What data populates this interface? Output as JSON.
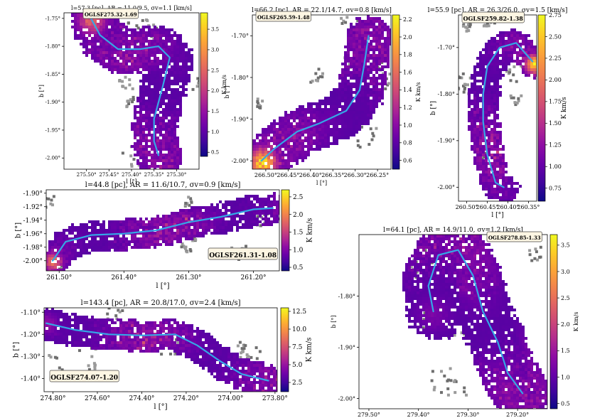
{
  "colorbar_unit": "K km/s",
  "chart_data": [
    {
      "type": "heatmap",
      "id": "p1",
      "title": "l=57.3 [pc], AR = 11.0/9.5, σv=1.1 [km/s]",
      "label": "OGLSF275.32-1.69",
      "xlabel": "l [°]",
      "ylabel": "b [°]",
      "cbar_label": "K km/s",
      "xlim": [
        275.55,
        275.25
      ],
      "ylim": [
        -2.02,
        -1.74
      ],
      "xticks": [
        {
          "v": 275.5,
          "t": "275.50°"
        },
        {
          "v": 275.45,
          "t": "275.45°"
        },
        {
          "v": 275.4,
          "t": "275.40°"
        },
        {
          "v": 275.35,
          "t": "275.35°"
        },
        {
          "v": 275.3,
          "t": "275.30°"
        }
      ],
      "yticks": [
        {
          "v": -1.75,
          "t": "-1.75°"
        },
        {
          "v": -1.8,
          "t": "-1.80°"
        },
        {
          "v": -1.85,
          "t": "-1.85°"
        },
        {
          "v": -1.9,
          "t": "-1.90°"
        },
        {
          "v": -1.95,
          "t": "-1.95°"
        },
        {
          "v": -2.0,
          "t": "-2.00°"
        }
      ],
      "clim": [
        0.4,
        3.9
      ],
      "cticks": [
        {
          "v": 0.5,
          "t": "0.5"
        },
        {
          "v": 1.0,
          "t": "1.0"
        },
        {
          "v": 1.5,
          "t": "1.5"
        },
        {
          "v": 2.0,
          "t": "2.0"
        },
        {
          "v": 2.5,
          "t": "2.5"
        },
        {
          "v": 3.0,
          "t": "3.0"
        },
        {
          "v": 3.5,
          "t": "3.5"
        }
      ],
      "spine": [
        [
          275.49,
          -1.75
        ],
        [
          275.47,
          -1.78
        ],
        [
          275.43,
          -1.805
        ],
        [
          275.38,
          -1.805
        ],
        [
          275.34,
          -1.8
        ],
        [
          275.315,
          -1.82
        ],
        [
          275.33,
          -1.87
        ],
        [
          275.35,
          -1.93
        ],
        [
          275.35,
          -1.97
        ],
        [
          275.34,
          -1.995
        ]
      ]
    },
    {
      "type": "heatmap",
      "id": "p2",
      "title": "l=66.2 [pc], AR = 22.1/14.7, σv=0.8 [km/s]",
      "label": "OGLSF265.59-1.48",
      "xlabel": "l [°]",
      "ylabel": "b [°]",
      "cbar_label": "K km/s",
      "xlim": [
        266.53,
        266.22
      ],
      "ylim": [
        -2.02,
        -1.65
      ],
      "xticks": [
        {
          "v": 266.5,
          "t": "266.50°"
        },
        {
          "v": 266.45,
          "t": "266.45°"
        },
        {
          "v": 266.4,
          "t": "266.40°"
        },
        {
          "v": 266.35,
          "t": "266.35°"
        },
        {
          "v": 266.3,
          "t": "266.30°"
        },
        {
          "v": 266.25,
          "t": "266.25°"
        }
      ],
      "yticks": [
        {
          "v": -1.7,
          "t": "-1.70°"
        },
        {
          "v": -1.8,
          "t": "-1.80°"
        },
        {
          "v": -1.9,
          "t": "-1.90°"
        },
        {
          "v": -2.0,
          "t": "-2.00°"
        }
      ],
      "clim": [
        0.5,
        2.25
      ],
      "cticks": [
        {
          "v": 0.6,
          "t": "0.6"
        },
        {
          "v": 0.8,
          "t": "0.8"
        },
        {
          "v": 1.0,
          "t": "1.0"
        },
        {
          "v": 1.2,
          "t": "1.2"
        },
        {
          "v": 1.4,
          "t": "1.4"
        },
        {
          "v": 1.6,
          "t": "1.6"
        },
        {
          "v": 1.8,
          "t": "1.8"
        },
        {
          "v": 2.0,
          "t": "2.0"
        },
        {
          "v": 2.2,
          "t": "2.2"
        }
      ],
      "spine": [
        [
          266.51,
          -2.0
        ],
        [
          266.48,
          -1.97
        ],
        [
          266.43,
          -1.93
        ],
        [
          266.38,
          -1.91
        ],
        [
          266.32,
          -1.88
        ],
        [
          266.29,
          -1.83
        ],
        [
          266.28,
          -1.77
        ],
        [
          266.27,
          -1.7
        ]
      ]
    },
    {
      "type": "heatmap",
      "id": "p3",
      "title": "l=55.9 [pc], AR = 26.3/26.0, σv=1.5 [km/s]",
      "label": "OGLSF259.82-1.38",
      "xlabel": "l [°]",
      "ylabel": "b [°]",
      "cbar_label": "K km/s",
      "xlim": [
        260.52,
        260.33
      ],
      "ylim": [
        -2.03,
        -1.63
      ],
      "xticks": [
        {
          "v": 260.5,
          "t": "260.50°"
        },
        {
          "v": 260.45,
          "t": "260.45°"
        },
        {
          "v": 260.4,
          "t": "260.40°"
        },
        {
          "v": 260.35,
          "t": "260.35°"
        }
      ],
      "yticks": [
        {
          "v": -1.7,
          "t": "-1.70°"
        },
        {
          "v": -1.8,
          "t": "-1.80°"
        },
        {
          "v": -1.9,
          "t": "-1.90°"
        },
        {
          "v": -2.0,
          "t": "-2.00°"
        }
      ],
      "clim": [
        0.6,
        2.75
      ],
      "cticks": [
        {
          "v": 0.75,
          "t": "0.75"
        },
        {
          "v": 1.0,
          "t": "1.00"
        },
        {
          "v": 1.25,
          "t": "1.25"
        },
        {
          "v": 1.5,
          "t": "1.50"
        },
        {
          "v": 1.75,
          "t": "1.75"
        },
        {
          "v": 2.0,
          "t": "2.00"
        },
        {
          "v": 2.25,
          "t": "2.25"
        },
        {
          "v": 2.5,
          "t": "2.50"
        },
        {
          "v": 2.75,
          "t": "2.75"
        }
      ],
      "spine": [
        [
          260.34,
          -1.73
        ],
        [
          260.38,
          -1.69
        ],
        [
          260.42,
          -1.7
        ],
        [
          260.45,
          -1.74
        ],
        [
          260.46,
          -1.8
        ],
        [
          260.46,
          -1.86
        ],
        [
          260.45,
          -1.93
        ],
        [
          260.43,
          -1.99
        ],
        [
          260.41,
          -2.0
        ]
      ]
    },
    {
      "type": "heatmap",
      "id": "p4",
      "title": "l=44.8 [pc], AR = 11.6/10.7, σv=0.9 [km/s]",
      "label": "OGLSF261.31-1.08",
      "xlabel": "l [°]",
      "ylabel": "b [°]",
      "cbar_label": "K km/s",
      "xlim": [
        261.52,
        261.16
      ],
      "ylim": [
        -2.015,
        -1.895
      ],
      "xticks": [
        {
          "v": 261.5,
          "t": "261.50°"
        },
        {
          "v": 261.4,
          "t": "261.40°"
        },
        {
          "v": 261.3,
          "t": "261.30°"
        },
        {
          "v": 261.2,
          "t": "261.20°"
        }
      ],
      "yticks": [
        {
          "v": -1.9,
          "t": "-1.90°"
        },
        {
          "v": -1.92,
          "t": "-1.92°"
        },
        {
          "v": -1.94,
          "t": "-1.94°"
        },
        {
          "v": -1.96,
          "t": "-1.96°"
        },
        {
          "v": -1.98,
          "t": "-1.98°"
        },
        {
          "v": -2.0,
          "t": "-2.00°"
        }
      ],
      "clim": [
        0.4,
        2.7
      ],
      "cticks": [
        {
          "v": 0.5,
          "t": "0.5"
        },
        {
          "v": 1.0,
          "t": "1.0"
        },
        {
          "v": 1.5,
          "t": "1.5"
        },
        {
          "v": 2.0,
          "t": "2.0"
        },
        {
          "v": 2.5,
          "t": "2.5"
        }
      ],
      "spine": [
        [
          261.51,
          -2.0
        ],
        [
          261.49,
          -1.972
        ],
        [
          261.45,
          -1.962
        ],
        [
          261.4,
          -1.96
        ],
        [
          261.35,
          -1.955
        ],
        [
          261.3,
          -1.943
        ],
        [
          261.25,
          -1.935
        ],
        [
          261.2,
          -1.924
        ],
        [
          261.17,
          -1.922
        ]
      ]
    },
    {
      "type": "heatmap",
      "id": "p5",
      "title": "l=143.4 [pc], AR = 20.8/17.0, σv=2.4 [km/s]",
      "label": "OGLSF274.07-1.20",
      "xlabel": "l [°]",
      "ylabel": "b [°]",
      "cbar_label": "K km/s",
      "xlim": [
        274.84,
        273.79
      ],
      "ylim": [
        -1.46,
        -1.08
      ],
      "xticks": [
        {
          "v": 274.8,
          "t": "274.80°"
        },
        {
          "v": 274.6,
          "t": "274.60°"
        },
        {
          "v": 274.4,
          "t": "274.40°"
        },
        {
          "v": 274.2,
          "t": "274.20°"
        },
        {
          "v": 274.0,
          "t": "274.00°"
        },
        {
          "v": 273.8,
          "t": "273.80°"
        }
      ],
      "yticks": [
        {
          "v": -1.1,
          "t": "-1.10°"
        },
        {
          "v": -1.2,
          "t": "-1.20°"
        },
        {
          "v": -1.3,
          "t": "-1.30°"
        },
        {
          "v": -1.4,
          "t": "-1.40°"
        }
      ],
      "clim": [
        1.2,
        13.0
      ],
      "cticks": [
        {
          "v": 2.5,
          "t": "2.5"
        },
        {
          "v": 5.0,
          "t": "5.0"
        },
        {
          "v": 7.5,
          "t": "7.5"
        },
        {
          "v": 10.0,
          "t": "10.0"
        },
        {
          "v": 12.5,
          "t": "12.5"
        }
      ],
      "spine": [
        [
          274.83,
          -1.15
        ],
        [
          274.7,
          -1.18
        ],
        [
          274.55,
          -1.2
        ],
        [
          274.4,
          -1.205
        ],
        [
          274.25,
          -1.2
        ],
        [
          274.15,
          -1.25
        ],
        [
          274.05,
          -1.32
        ],
        [
          273.95,
          -1.38
        ],
        [
          273.83,
          -1.41
        ]
      ]
    },
    {
      "type": "heatmap",
      "id": "p6",
      "title": "l=64.1 [pc], AR = 14.9/11.0, σv=1.2 [km/s]",
      "label": "OGLSF278.85-1.33",
      "xlabel": "l [°]",
      "ylabel": "b [°]",
      "cbar_label": "K km/s",
      "xlim": [
        279.52,
        279.14
      ],
      "ylim": [
        -2.02,
        -1.68
      ],
      "xticks": [
        {
          "v": 279.5,
          "t": "279.50°"
        },
        {
          "v": 279.4,
          "t": "279.40°"
        },
        {
          "v": 279.3,
          "t": "279.30°"
        },
        {
          "v": 279.2,
          "t": "279.20°"
        }
      ],
      "yticks": [
        {
          "v": -1.8,
          "t": "-1.80°"
        },
        {
          "v": -1.9,
          "t": "-1.90°"
        },
        {
          "v": -2.0,
          "t": "-2.00°"
        }
      ],
      "clim": [
        0.4,
        3.7
      ],
      "cticks": [
        {
          "v": 0.5,
          "t": "0.5"
        },
        {
          "v": 1.0,
          "t": "1.0"
        },
        {
          "v": 1.5,
          "t": "1.5"
        },
        {
          "v": 2.0,
          "t": "2.0"
        },
        {
          "v": 2.5,
          "t": "2.5"
        },
        {
          "v": 3.0,
          "t": "3.0"
        },
        {
          "v": 3.5,
          "t": "3.5"
        }
      ],
      "spine": [
        [
          279.37,
          -1.83
        ],
        [
          279.38,
          -1.78
        ],
        [
          279.36,
          -1.72
        ],
        [
          279.32,
          -1.71
        ],
        [
          279.29,
          -1.76
        ],
        [
          279.27,
          -1.83
        ],
        [
          279.24,
          -1.89
        ],
        [
          279.22,
          -1.95
        ],
        [
          279.19,
          -1.99
        ]
      ]
    }
  ]
}
